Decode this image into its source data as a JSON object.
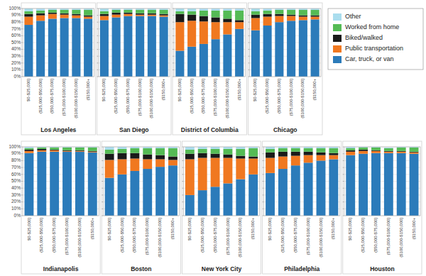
{
  "chart_data": [
    {
      "type": "bar",
      "stacked": true,
      "grid": true,
      "legend": "right",
      "title": "Los Angeles",
      "categories": [
        "$0-$25,000]",
        "($25,000-$50,000]",
        "($50,000-$75,000]",
        "($75,000-$100,000]",
        "($100,000-$150,000]",
        "($150,000+"
      ],
      "series": [
        {
          "name": "Car, truck, or van",
          "color": "#2b7bba",
          "values": [
            76,
            82,
            85,
            86,
            86,
            85
          ]
        },
        {
          "name": "Public transportation",
          "color": "#f07820",
          "values": [
            12,
            8,
            7,
            5,
            4,
            3
          ]
        },
        {
          "name": "Biked/walked",
          "color": "#1a1a1a",
          "values": [
            4,
            3,
            2,
            2,
            2,
            2
          ]
        },
        {
          "name": "Worked from home",
          "color": "#55bb55",
          "values": [
            4,
            4,
            4,
            5,
            6,
            8
          ]
        },
        {
          "name": "Other",
          "color": "#aaddee",
          "values": [
            4,
            3,
            2,
            2,
            2,
            2
          ]
        }
      ],
      "ylim": [
        0,
        100
      ],
      "yticks": [
        {
          "value": 0,
          "label": "0%"
        },
        {
          "value": 10,
          "label": "10%"
        },
        {
          "value": 20,
          "label": "20%"
        },
        {
          "value": 30,
          "label": "30%"
        },
        {
          "value": 40,
          "label": "40%"
        },
        {
          "value": 50,
          "label": "50%"
        },
        {
          "value": 60,
          "label": "60%"
        },
        {
          "value": 70,
          "label": "70%"
        },
        {
          "value": 80,
          "label": "80%"
        },
        {
          "value": 90,
          "label": "90%"
        },
        {
          "value": 100,
          "label": "100%"
        }
      ]
    },
    {
      "type": "bar",
      "stacked": true,
      "grid": true,
      "tick_labels": "x",
      "title": "San Diego",
      "categories": [
        "$0-$25,000]",
        "($25,000-$50,000]",
        "($50,000-$75,000]",
        "($75,000-$100,000]",
        "($100,000-$150,000]",
        "($150,000+"
      ],
      "series": [
        {
          "color": "#2b7bba",
          "values": [
            83,
            87,
            89,
            89,
            89,
            88
          ]
        },
        {
          "color": "#f07820",
          "values": [
            6,
            4,
            3,
            2,
            2,
            2
          ]
        },
        {
          "color": "#1a1a1a",
          "values": [
            3,
            3,
            2,
            2,
            2,
            2
          ]
        },
        {
          "color": "#55bb55",
          "values": [
            4,
            4,
            4,
            5,
            5,
            6
          ]
        },
        {
          "color": "#aaddee",
          "values": [
            4,
            2,
            2,
            2,
            2,
            2
          ]
        }
      ],
      "ylim": [
        0,
        100
      ],
      "yticks": [
        0,
        10,
        20,
        30,
        40,
        50,
        60,
        70,
        80,
        90,
        100
      ]
    },
    {
      "type": "bar",
      "stacked": true,
      "grid": true,
      "tick_labels": "x",
      "title": "District of Columbia",
      "categories": [
        "$0-$25,000]",
        "($25,000-$50,000]",
        "($50,000-$75,000]",
        "($75,000-$100,000]",
        "($100,000-$150,000]",
        "($150,000+"
      ],
      "series": [
        {
          "color": "#2b7bba",
          "values": [
            38,
            44,
            48,
            55,
            62,
            70
          ]
        },
        {
          "color": "#f07820",
          "values": [
            42,
            38,
            33,
            25,
            18,
            10
          ]
        },
        {
          "color": "#1a1a1a",
          "values": [
            12,
            9,
            8,
            7,
            5,
            3
          ]
        },
        {
          "color": "#55bb55",
          "values": [
            4,
            5,
            8,
            10,
            12,
            14
          ]
        },
        {
          "color": "#aaddee",
          "values": [
            4,
            4,
            3,
            3,
            3,
            3
          ]
        }
      ],
      "ylim": [
        0,
        100
      ],
      "yticks": [
        0,
        10,
        20,
        30,
        40,
        50,
        60,
        70,
        80,
        90,
        100
      ]
    },
    {
      "type": "bar",
      "stacked": true,
      "grid": true,
      "tick_labels": "x",
      "title": "Chicago",
      "categories": [
        "$0-$25,000]",
        "($25,000-$50,000]",
        "($50,000-$75,000]",
        "($75,000-$100,000]",
        "($100,000-$150,000]",
        "($150,000+"
      ],
      "series": [
        {
          "color": "#2b7bba",
          "values": [
            68,
            75,
            80,
            82,
            83,
            84
          ]
        },
        {
          "color": "#f07820",
          "values": [
            18,
            13,
            9,
            7,
            5,
            4
          ]
        },
        {
          "color": "#1a1a1a",
          "values": [
            5,
            4,
            3,
            2,
            2,
            2
          ]
        },
        {
          "color": "#55bb55",
          "values": [
            5,
            5,
            6,
            7,
            8,
            8
          ]
        },
        {
          "color": "#aaddee",
          "values": [
            4,
            3,
            2,
            2,
            2,
            2
          ]
        }
      ],
      "ylim": [
        0,
        100
      ],
      "yticks": [
        0,
        10,
        20,
        30,
        40,
        50,
        60,
        70,
        80,
        90,
        100
      ]
    },
    {
      "type": "bar",
      "stacked": true,
      "grid": true,
      "title": "Indianapolis",
      "categories": [
        "$0-$25,000]",
        "($25,000-$50,000]",
        "($50,000-$75,000]",
        "($75,000-$100,000]",
        "($100,000-$150,000]",
        "($150,000+"
      ],
      "series": [
        {
          "color": "#2b7bba",
          "values": [
            91,
            93,
            93,
            93,
            93,
            92
          ]
        },
        {
          "color": "#f07820",
          "values": [
            3,
            2,
            2,
            1,
            1,
            1
          ]
        },
        {
          "color": "#1a1a1a",
          "values": [
            2,
            2,
            1,
            1,
            1,
            1
          ]
        },
        {
          "color": "#55bb55",
          "values": [
            2,
            2,
            3,
            4,
            4,
            5
          ]
        },
        {
          "color": "#aaddee",
          "values": [
            2,
            1,
            1,
            1,
            1,
            1
          ]
        }
      ],
      "ylim": [
        0,
        100
      ],
      "yticks": [
        {
          "value": 0,
          "label": "0%"
        },
        {
          "value": 10,
          "label": "10%"
        },
        {
          "value": 20,
          "label": "20%"
        },
        {
          "value": 30,
          "label": "30%"
        },
        {
          "value": 40,
          "label": "40%"
        },
        {
          "value": 50,
          "label": "50%"
        },
        {
          "value": 60,
          "label": "60%"
        },
        {
          "value": 70,
          "label": "70%"
        },
        {
          "value": 80,
          "label": "80%"
        },
        {
          "value": 90,
          "label": "90%"
        },
        {
          "value": 100,
          "label": "100%"
        }
      ]
    },
    {
      "type": "bar",
      "stacked": true,
      "grid": true,
      "tick_labels": "x",
      "title": "Boston",
      "categories": [
        "$0-$25,000]",
        "($25,000-$50,000]",
        "($50,000-$75,000]",
        "($75,000-$100,000]",
        "($100,000-$150,000]",
        "($150,000+"
      ],
      "series": [
        {
          "color": "#2b7bba",
          "values": [
            55,
            60,
            65,
            68,
            71,
            73
          ]
        },
        {
          "color": "#f07820",
          "values": [
            26,
            22,
            18,
            14,
            11,
            8
          ]
        },
        {
          "color": "#1a1a1a",
          "values": [
            9,
            9,
            8,
            7,
            6,
            5
          ]
        },
        {
          "color": "#55bb55",
          "values": [
            6,
            6,
            7,
            9,
            10,
            12
          ]
        },
        {
          "color": "#aaddee",
          "values": [
            4,
            3,
            2,
            2,
            2,
            2
          ]
        }
      ],
      "ylim": [
        0,
        100
      ],
      "yticks": [
        0,
        10,
        20,
        30,
        40,
        50,
        60,
        70,
        80,
        90,
        100
      ]
    },
    {
      "type": "bar",
      "stacked": true,
      "grid": true,
      "tick_labels": "x",
      "title": "New York City",
      "categories": [
        "$0-$25,000]",
        "($25,000-$50,000]",
        "($50,000-$75,000]",
        "($75,000-$100,000]",
        "($100,000-$150,000]",
        "($150,000+"
      ],
      "series": [
        {
          "color": "#2b7bba",
          "values": [
            30,
            37,
            42,
            47,
            53,
            60
          ]
        },
        {
          "color": "#f07820",
          "values": [
            52,
            47,
            42,
            37,
            30,
            23
          ]
        },
        {
          "color": "#1a1a1a",
          "values": [
            8,
            7,
            6,
            5,
            4,
            3
          ]
        },
        {
          "color": "#55bb55",
          "values": [
            6,
            6,
            7,
            8,
            10,
            12
          ]
        },
        {
          "color": "#aaddee",
          "values": [
            4,
            3,
            3,
            3,
            3,
            2
          ]
        }
      ],
      "ylim": [
        0,
        100
      ],
      "yticks": [
        0,
        10,
        20,
        30,
        40,
        50,
        60,
        70,
        80,
        90,
        100
      ]
    },
    {
      "type": "bar",
      "stacked": true,
      "grid": true,
      "tick_labels": "x",
      "title": "Philadelphia",
      "categories": [
        "$0-$25,000]",
        "($25,000-$50,000]",
        "($50,000-$75,000]",
        "($75,000-$100,000]",
        "($100,000-$150,000]",
        "($150,000+"
      ],
      "series": [
        {
          "color": "#2b7bba",
          "values": [
            62,
            68,
            73,
            77,
            80,
            82
          ]
        },
        {
          "color": "#f07820",
          "values": [
            22,
            18,
            14,
            11,
            8,
            6
          ]
        },
        {
          "color": "#1a1a1a",
          "values": [
            8,
            7,
            6,
            5,
            4,
            3
          ]
        },
        {
          "color": "#55bb55",
          "values": [
            5,
            5,
            5,
            5,
            6,
            7
          ]
        },
        {
          "color": "#aaddee",
          "values": [
            3,
            2,
            2,
            2,
            2,
            2
          ]
        }
      ],
      "ylim": [
        0,
        100
      ],
      "yticks": [
        0,
        10,
        20,
        30,
        40,
        50,
        60,
        70,
        80,
        90,
        100
      ]
    },
    {
      "type": "bar",
      "stacked": true,
      "grid": true,
      "tick_labels": "x",
      "title": "Houston",
      "categories": [
        "$0-$25,000]",
        "($25,000-$50,000]",
        "($50,000-$75,000]",
        "($75,000-$100,000]",
        "($100,000-$150,000]",
        "($150,000+"
      ],
      "series": [
        {
          "color": "#2b7bba",
          "values": [
            88,
            90,
            91,
            91,
            91,
            90
          ]
        },
        {
          "color": "#f07820",
          "values": [
            5,
            4,
            3,
            2,
            2,
            2
          ]
        },
        {
          "color": "#1a1a1a",
          "values": [
            2,
            2,
            1,
            1,
            1,
            1
          ]
        },
        {
          "color": "#55bb55",
          "values": [
            3,
            3,
            4,
            4,
            5,
            6
          ]
        },
        {
          "color": "#aaddee",
          "values": [
            2,
            1,
            1,
            1,
            1,
            1
          ]
        }
      ],
      "ylim": [
        0,
        100
      ],
      "yticks": [
        0,
        10,
        20,
        30,
        40,
        50,
        60,
        70,
        80,
        90,
        100
      ]
    }
  ]
}
